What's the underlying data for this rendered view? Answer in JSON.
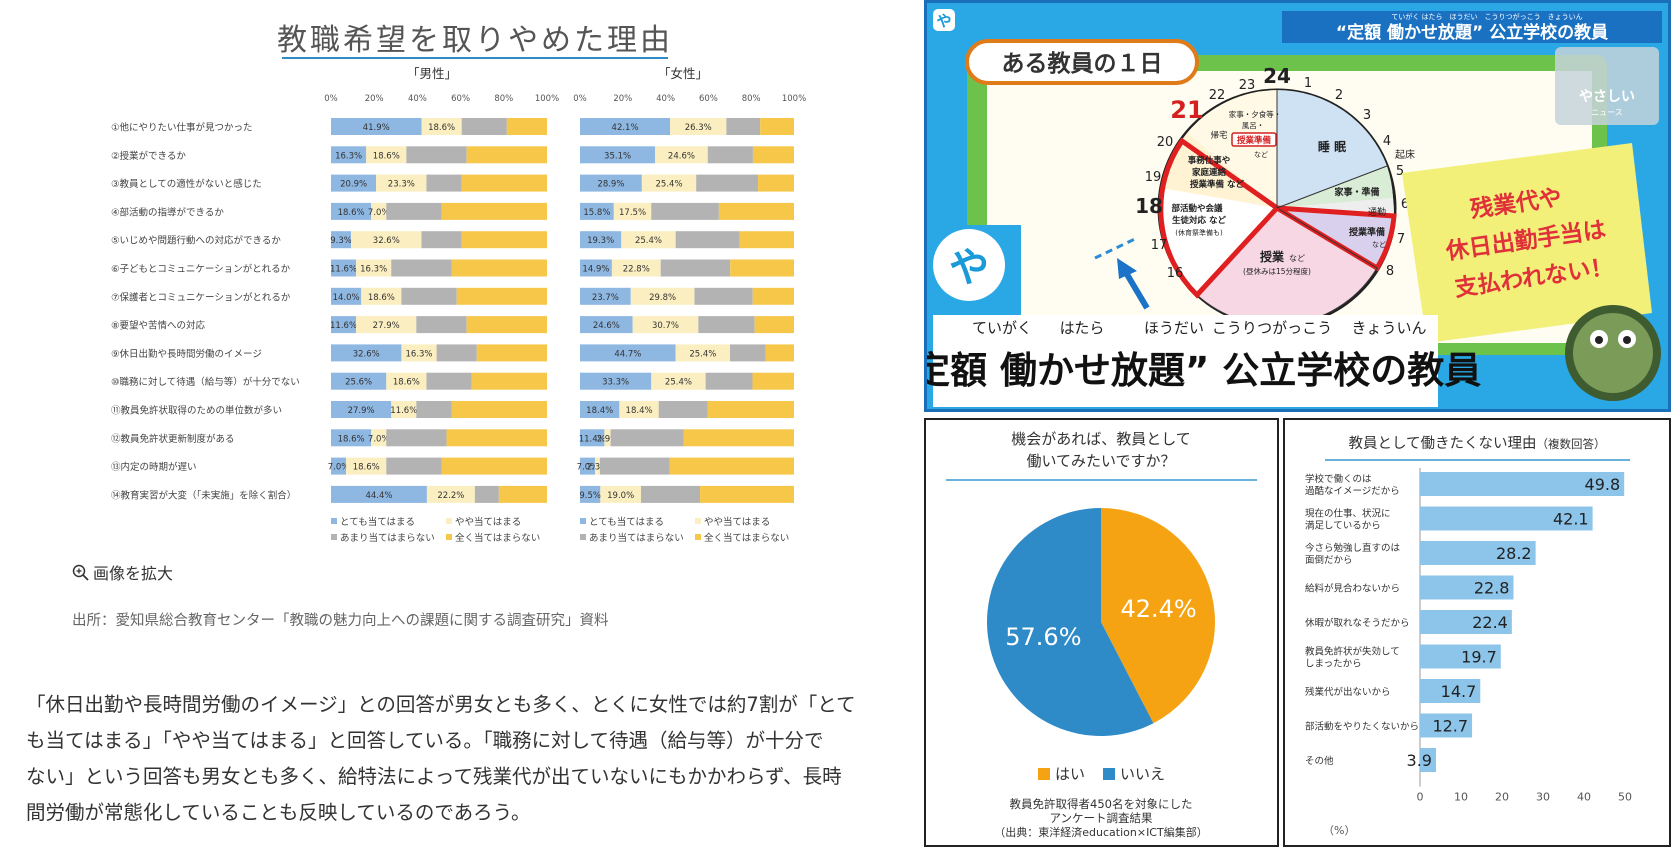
{
  "left_panel": {
    "chart_title": "教職希望を取りやめた理由",
    "male_label": "「男性」",
    "female_label": "「女性」",
    "zoom_link": "画像を拡大",
    "source": "出所：愛知県総合教育センター「教職の魅力向上への課題に関する調査研究」資料",
    "paragraph_lines": [
      "「休日出勤や長時間労働のイメージ」との回答が男女とも多く、とくに女性では約7割が「とて",
      "も当てはまる」「やや当てはまる」と回答している。「職務に対して待遇（給与等）が十分で",
      "ない」という回答も男女とも多く、給特法によって残業代が出ていないにもかかわらず、長時",
      "間労働が常態化していることも反映しているのであろう。"
    ]
  },
  "tv_panel": {
    "banner_small": "“定額 働かせ放題” 公立学校の教員",
    "banner_ruby": "ていがく はたら　ほうだい　こうりつがっこう　きょういん",
    "day_label": "ある教員の１日",
    "logo_mark": "や",
    "logo_corner": "や",
    "channel_text": "やさしい",
    "channel_sub": "ニュース",
    "clock_numbers": [
      "24",
      "1",
      "2",
      "3",
      "4",
      "5",
      "6",
      "7",
      "8",
      "16",
      "17",
      "18",
      "19",
      "20",
      "21",
      "22",
      "23"
    ],
    "clock_labels": {
      "sleep": "睡 眠",
      "wake": "起床",
      "housework": "家事・準備",
      "commute": "通勤",
      "class": "授業",
      "class_small": "など",
      "class_note": "(昼休みは15分程度)",
      "prep": "授業準備",
      "prep_small": "など",
      "club1": "部活動や会議",
      "club2": "生徒対応 など",
      "club3": "(休育祭準備も)",
      "office1": "事務仕事や",
      "office2": "家庭連絡",
      "office3": "授業準備 など",
      "home": "帰宅",
      "evening1": "家事・夕食等・",
      "evening2": "風呂・",
      "evening3": "授業準備",
      "evening4": "など"
    },
    "note_lines": [
      "残業代や",
      "休日出勤手当は",
      "支払われない！"
    ],
    "main_title": "“定額 働かせ放題” 公立学校の教員",
    "main_ruby": [
      "ていがく",
      "はたら",
      "ほうだい",
      "こうりつがっこう",
      "きょういん"
    ]
  },
  "pie_panel": {
    "title_line1": "機会があれば、教員として",
    "title_line2": "働いてみたいですか？",
    "legend_yes": "はい",
    "legend_no": "いいえ",
    "footnote1": "教員免許取得者450名を対象にした",
    "footnote2": "アンケート調査結果",
    "footnote3": "（出典：東洋経済education×ICT編集部）"
  },
  "bar_panel": {
    "title": "教員として働きたくない理由",
    "title_note": "（複数回答）",
    "axis_unit": "（%）"
  },
  "colors": {
    "blue": "#8eb7e2",
    "lightyellow": "#fbeec0",
    "gray": "#b3b3b3",
    "yellow": "#f7c74a",
    "pie_orange": "#f6a313",
    "pie_blue": "#2e8bc7",
    "bar_blue": "#8cc4ea"
  },
  "chart_data": [
    {
      "type": "bar",
      "title": "教職希望を取りやめた理由",
      "subtitle": "「男性」",
      "stacked": true,
      "orientation": "horizontal",
      "xlim": [
        0,
        100
      ],
      "x_ticks": [
        "0%",
        "20%",
        "40%",
        "60%",
        "80%",
        "100%"
      ],
      "categories": [
        "①他にやりたい仕事が見つかった",
        "②授業ができるか",
        "③教員としての適性がないと感じた",
        "④部活動の指導ができるか",
        "⑤いじめや問題行動への対応ができるか",
        "⑥子どもとコミュニケーションがとれるか",
        "⑦保護者とコミュニケーションがとれるか",
        "⑧要望や苦情への対応",
        "⑨休日出勤や長時間労働のイメージ",
        "⑩職務に対して待遇（給与等）が十分でない",
        "⑪教員免許状取得のための単位数が多い",
        "⑫教員免許状更新制度がある",
        "⑬内定の時期が遅い",
        "⑭教育実習が大変（「未実施」を除く割合）"
      ],
      "series": [
        {
          "name": "とても当てはまる",
          "values": [
            41.9,
            16.3,
            20.9,
            18.6,
            9.3,
            11.6,
            14.0,
            11.6,
            32.6,
            25.6,
            27.9,
            18.6,
            7.0,
            44.4
          ]
        },
        {
          "name": "やや当てはまる",
          "values": [
            18.6,
            18.6,
            23.3,
            7.0,
            32.6,
            16.3,
            18.6,
            27.9,
            16.3,
            18.6,
            11.6,
            7.0,
            18.6,
            22.2
          ]
        },
        {
          "name": "あまり当てはまらない",
          "values": [
            20.9,
            27.9,
            16.3,
            25.6,
            18.6,
            27.9,
            25.6,
            23.3,
            18.6,
            20.9,
            16.3,
            27.9,
            25.6,
            11.1
          ]
        },
        {
          "name": "全く当てはまらない",
          "values": [
            18.6,
            37.2,
            39.5,
            48.8,
            39.5,
            44.2,
            41.8,
            37.2,
            32.5,
            34.9,
            44.2,
            46.5,
            48.8,
            22.3
          ]
        }
      ],
      "legend": "bottom"
    },
    {
      "type": "bar",
      "title": "教職希望を取りやめた理由",
      "subtitle": "「女性」",
      "stacked": true,
      "orientation": "horizontal",
      "xlim": [
        0,
        100
      ],
      "x_ticks": [
        "0%",
        "20%",
        "40%",
        "60%",
        "80%",
        "100%"
      ],
      "categories": [
        "①他にやりたい仕事が見つかった",
        "②授業ができるか",
        "③教員としての適性がないと感じた",
        "④部活動の指導ができるか",
        "⑤いじめや問題行動への対応ができるか",
        "⑥子どもとコミュニケーションがとれるか",
        "⑦保護者とコミュニケーションがとれるか",
        "⑧要望や苦情への対応",
        "⑨休日出勤や長時間労働のイメージ",
        "⑩職務に対して待遇（給与等）が十分でない",
        "⑪教員免許状取得のための単位数が多い",
        "⑫教員免許状更新制度がある",
        "⑬内定の時期が遅い",
        "⑭教育実習が大変（「未実施」を除く割合）"
      ],
      "series": [
        {
          "name": "とても当てはまる",
          "values": [
            42.1,
            35.1,
            28.9,
            15.8,
            19.3,
            14.9,
            23.7,
            24.6,
            44.7,
            33.3,
            18.4,
            11.4,
            7.0,
            9.5
          ]
        },
        {
          "name": "やや当てはまる",
          "values": [
            26.3,
            24.6,
            25.4,
            17.5,
            25.4,
            22.8,
            29.8,
            30.7,
            25.4,
            25.4,
            18.4,
            2.9,
            2.3,
            19.0
          ]
        },
        {
          "name": "あまり当てはまらない",
          "values": [
            15.8,
            21.1,
            28.9,
            31.6,
            29.8,
            32.5,
            27.2,
            26.3,
            16.7,
            21.9,
            22.8,
            34.2,
            32.5,
            27.6
          ]
        },
        {
          "name": "全く当てはまらない",
          "values": [
            15.8,
            19.2,
            16.8,
            35.1,
            25.5,
            29.8,
            19.3,
            18.4,
            13.2,
            19.4,
            40.4,
            51.5,
            58.2,
            43.9
          ]
        }
      ],
      "legend": "bottom"
    },
    {
      "type": "pie",
      "title": "機会があれば、教員として働いてみたいですか？",
      "labels": [
        "はい",
        "いいえ"
      ],
      "values": [
        42.4,
        57.6
      ],
      "value_labels": [
        "42.4%",
        "57.6%"
      ],
      "legend": "bottom"
    },
    {
      "type": "bar",
      "orientation": "horizontal",
      "title": "教員として働きたくない理由（複数回答）",
      "xlabel": "（%）",
      "xlim": [
        0,
        50
      ],
      "x_ticks": [
        "0",
        "10",
        "20",
        "30",
        "40",
        "50"
      ],
      "categories": [
        "学校で働くのは過酷なイメージだから",
        "現在の仕事、状況に満足しているから",
        "今さら勉強し直すのは面倒だから",
        "給料が見合わないから",
        "休暇が取れなそうだから",
        "教員免許状が失効してしまったから",
        "残業代が出ないから",
        "部活動をやりたくないから",
        "その他"
      ],
      "category_lines": [
        [
          "学校で働くのは",
          "過酷なイメージだから"
        ],
        [
          "現在の仕事、状況に",
          "満足しているから"
        ],
        [
          "今さら勉強し直すのは",
          "面倒だから"
        ],
        [
          "給料が見合わないから"
        ],
        [
          "休暇が取れなそうだから"
        ],
        [
          "教員免許状が失効して",
          "しまったから"
        ],
        [
          "残業代が出ないから"
        ],
        [
          "部活動をやりたくないから"
        ],
        [
          "その他"
        ]
      ],
      "values": [
        49.8,
        42.1,
        28.2,
        22.8,
        22.4,
        19.7,
        14.7,
        12.7,
        3.9
      ],
      "value_labels": [
        "49.8",
        "42.1",
        "28.2",
        "22.8",
        "22.4",
        "19.7",
        "14.7",
        "12.7",
        "3.9"
      ]
    }
  ]
}
